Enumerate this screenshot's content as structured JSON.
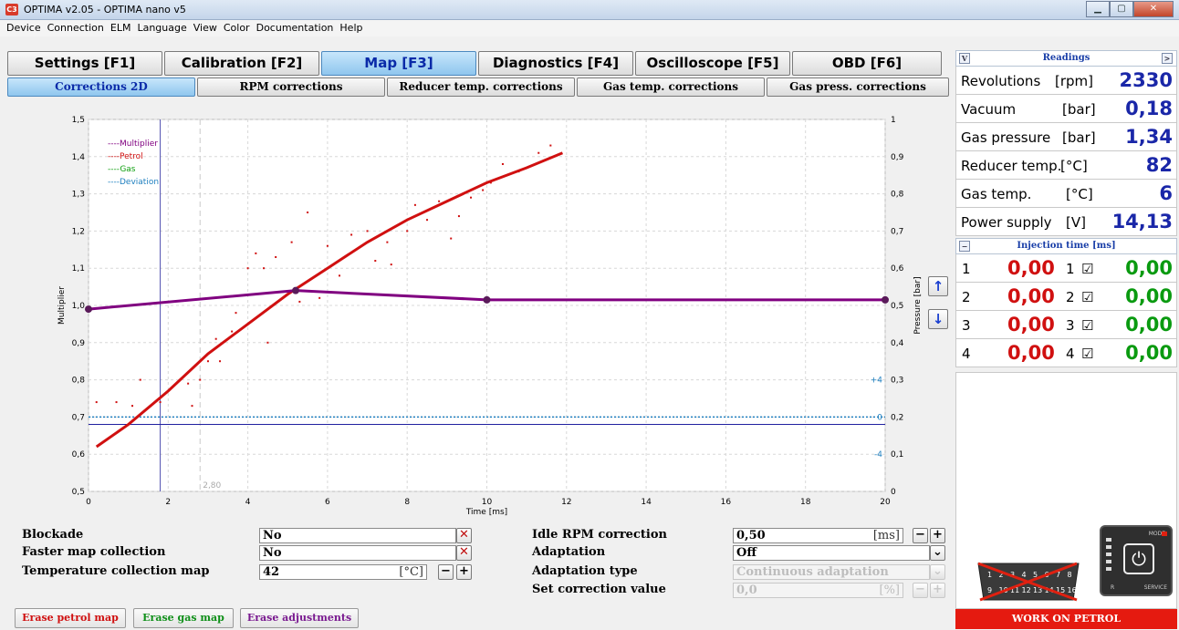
{
  "window": {
    "title": "OPTIMA v2.05  -  OPTIMA nano v5",
    "app_icon": "C3"
  },
  "menu": [
    "Device",
    "Connection",
    "ELM",
    "Language",
    "View",
    "Color",
    "Documentation",
    "Help"
  ],
  "main_tabs": [
    {
      "label": "Settings [F1]",
      "active": false
    },
    {
      "label": "Calibration [F2]",
      "active": false
    },
    {
      "label": "Map [F3]",
      "active": true
    },
    {
      "label": "Diagnostics [F4]",
      "active": false
    },
    {
      "label": "Oscilloscope [F5]",
      "active": false
    },
    {
      "label": "OBD [F6]",
      "active": false
    }
  ],
  "sub_tabs": [
    {
      "label": "Corrections 2D",
      "active": true
    },
    {
      "label": "RPM corrections",
      "active": false
    },
    {
      "label": "Reducer temp. corrections",
      "active": false
    },
    {
      "label": "Gas temp. corrections",
      "active": false
    },
    {
      "label": "Gas press. corrections",
      "active": false
    }
  ],
  "chart_data": {
    "type": "scatter",
    "xlabel": "Time [ms]",
    "ylabel": "Multiplier",
    "y2label": "Pressure [bar]",
    "xlim": [
      0,
      20
    ],
    "ylim": [
      0.5,
      1.5
    ],
    "y2lim": [
      0,
      1
    ],
    "x_ticks": [
      "0",
      "2",
      "4",
      "6",
      "8",
      "10",
      "12",
      "14",
      "16",
      "18",
      "20"
    ],
    "y_ticks": [
      "0,5",
      "0,6",
      "0,7",
      "0,8",
      "0,9",
      "1,0",
      "1,1",
      "1,2",
      "1,3",
      "1,4",
      "1,5"
    ],
    "y2_ticks": [
      "0",
      "0,1",
      "0,2",
      "0,3",
      "0,4",
      "0,5",
      "0,6",
      "0,7",
      "0,8",
      "0,9",
      "1"
    ],
    "legend": [
      {
        "name": "Multiplier",
        "color": "#800080"
      },
      {
        "name": "Petrol",
        "color": "#d01010"
      },
      {
        "name": "Gas",
        "color": "#10a010"
      },
      {
        "name": "Deviation",
        "color": "#2080c0"
      }
    ],
    "legend_placement": "top-left",
    "grid": true,
    "series": [
      {
        "name": "Multiplier",
        "color": "#800080",
        "x": [
          0,
          5.2,
          10,
          20
        ],
        "y": [
          0.99,
          1.04,
          1.015,
          1.015
        ]
      },
      {
        "name": "Petrol",
        "color": "#d01010",
        "x": [
          0.2,
          1,
          2,
          3,
          4,
          5,
          6,
          7,
          8,
          9,
          10,
          11,
          11.9
        ],
        "y": [
          0.62,
          0.68,
          0.77,
          0.87,
          0.95,
          1.03,
          1.1,
          1.17,
          1.23,
          1.28,
          1.33,
          1.37,
          1.41
        ]
      },
      {
        "name": "Petrol samples",
        "color": "#d01010",
        "x": [
          0.2,
          0.7,
          1.1,
          1.3,
          1.8,
          2.3,
          2.5,
          2.6,
          2.8,
          3.0,
          3.2,
          3.3,
          3.6,
          3.7,
          4.0,
          4.2,
          4.4,
          4.5,
          4.7,
          5.0,
          5.1,
          5.3,
          5.5,
          5.8,
          6.0,
          6.3,
          6.6,
          7.0,
          7.2,
          7.5,
          7.6,
          8.0,
          8.2,
          8.5,
          8.8,
          9.1,
          9.3,
          9.6,
          9.9,
          10.1,
          10.4,
          10.8,
          11.0,
          11.3,
          11.6
        ],
        "y": [
          0.74,
          0.74,
          0.73,
          0.8,
          0.74,
          0.8,
          0.79,
          0.73,
          0.8,
          0.85,
          0.91,
          0.85,
          0.93,
          0.98,
          1.1,
          1.14,
          1.1,
          0.9,
          1.13,
          1.03,
          1.17,
          1.01,
          1.25,
          1.02,
          1.16,
          1.08,
          1.19,
          1.2,
          1.12,
          1.17,
          1.11,
          1.2,
          1.27,
          1.23,
          1.28,
          1.18,
          1.24,
          1.29,
          1.31,
          1.33,
          1.38,
          1.36,
          1.37,
          1.41,
          1.43
        ]
      },
      {
        "name": "Deviation",
        "color": "#2080c0",
        "x": [
          0,
          20
        ],
        "y": [
          0.7,
          0.7
        ]
      },
      {
        "name": "Pressure",
        "color": "#2020a0",
        "x": [
          0,
          20
        ],
        "y": [
          0.68,
          0.68
        ]
      }
    ],
    "markers": {
      "deviation_plus": "+4",
      "deviation_zero": "0",
      "deviation_minus": "-4",
      "time_marker": "2,80"
    }
  },
  "params": {
    "blockade": {
      "label": "Blockade",
      "value": "No"
    },
    "faster_map": {
      "label": "Faster map collection",
      "value": "No"
    },
    "temp_map": {
      "label": "Temperature collection map",
      "value": "42",
      "unit": "[°C]"
    },
    "idle_rpm": {
      "label": "Idle RPM correction",
      "value": "0,50",
      "unit": "[ms]"
    },
    "adaptation": {
      "label": "Adaptation",
      "value": "Off"
    },
    "adaptation_type": {
      "label": "Adaptation type",
      "value": "Continuous adaptation"
    },
    "set_correction": {
      "label": "Set correction value",
      "value": "0,0",
      "unit": "[%]"
    }
  },
  "buttons": {
    "erase_petrol": "Erase petrol map",
    "erase_gas": "Erase gas map",
    "erase_adjust": "Erase adjustments",
    "up_icon": "arrow-up-icon",
    "down_icon": "arrow-down-icon"
  },
  "readings": {
    "title": "Readings",
    "rows": [
      {
        "label": "Revolutions",
        "unit": "[rpm]",
        "value": "2330"
      },
      {
        "label": "Vacuum",
        "unit": "[bar]",
        "value": "0,18"
      },
      {
        "label": "Gas pressure",
        "unit": "[bar]",
        "value": "1,34"
      },
      {
        "label": "Reducer temp.",
        "unit": "[°C]",
        "value": "82"
      },
      {
        "label": "Gas temp.",
        "unit": "[°C]",
        "value": "6"
      },
      {
        "label": "Power supply",
        "unit": "[V]",
        "value": "14,13"
      }
    ]
  },
  "injection": {
    "title": "Injection time [ms]",
    "rows": [
      {
        "n": "1",
        "petrol": "0,00",
        "gas_n": "1",
        "gas": "0,00"
      },
      {
        "n": "2",
        "petrol": "0,00",
        "gas_n": "2",
        "gas": "0,00"
      },
      {
        "n": "3",
        "petrol": "0,00",
        "gas_n": "3",
        "gas": "0,00"
      },
      {
        "n": "4",
        "petrol": "0,00",
        "gas_n": "4",
        "gas": "0,00"
      }
    ]
  },
  "status": {
    "work": "WORK ON PETROL",
    "mode": "MODE",
    "service": "SERVICE",
    "r": "R"
  },
  "obd_pins": [
    "1",
    "2",
    "3",
    "4",
    "5",
    "6",
    "7",
    "8",
    "9",
    "10",
    "11",
    "12",
    "13",
    "14",
    "15",
    "16"
  ]
}
